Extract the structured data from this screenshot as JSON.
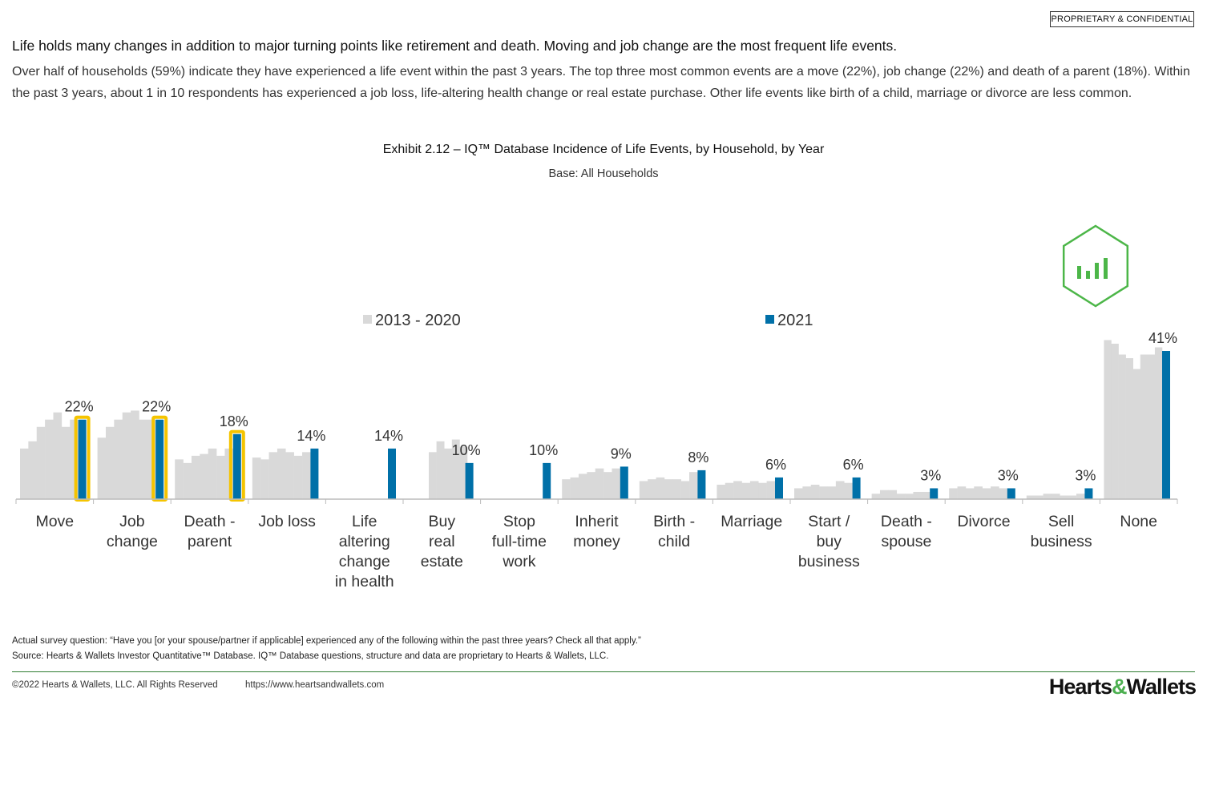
{
  "header": {
    "badge": "PROPRIETARY & CONFIDENTIAL",
    "headline": "Life holds many changes in addition to major turning points like retirement and death. Moving and job change are the most frequent life events.",
    "intro": "Over half of households (59%) indicate they have experienced a life event within the past 3 years. The top three most common events are a move (22%), job change (22%) and death of a parent (18%). Within the past 3 years, about 1 in 10 respondents has experienced a job loss, life-altering health change or real estate purchase. Other life events like birth of a child, marriage or divorce are less common."
  },
  "exhibit": {
    "title": "Exhibit 2.12 – IQ™ Database Incidence of Life Events, by Household, by Year",
    "base": "Base: All Households"
  },
  "chart_data": {
    "type": "bar",
    "title": "Exhibit 2.12 – IQ™ Database Incidence of Life Events, by Household, by Year",
    "subtitle": "Base: All Households",
    "legend": [
      "2013  - 2020",
      "2021"
    ],
    "legend_placement": "top-center",
    "colors": {
      "history": "#d9d9d9",
      "current": "#0070a8",
      "highlight": "#f5c400",
      "icon": "#4cb648"
    },
    "ylim": [
      0,
      45
    ],
    "categories": [
      "Move",
      "Job change",
      "Death - parent",
      "Job loss",
      "Life altering change in health",
      "Buy real estate",
      "Stop full-time work",
      "Inherit money",
      "Birth - child",
      "Marriage",
      "Start / buy business",
      "Death - spouse",
      "Divorce",
      "Sell business",
      "None"
    ],
    "category_lines": [
      [
        "Move"
      ],
      [
        "Job",
        "change"
      ],
      [
        "Death -",
        "parent"
      ],
      [
        "Job loss"
      ],
      [
        "Life",
        "altering",
        "change",
        "in health"
      ],
      [
        "Buy",
        "real",
        "estate"
      ],
      [
        "Stop",
        "full-time",
        "work"
      ],
      [
        "Inherit",
        "money"
      ],
      [
        "Birth -",
        "child"
      ],
      [
        "Marriage"
      ],
      [
        "Start /",
        "buy",
        "business"
      ],
      [
        "Death -",
        "spouse"
      ],
      [
        "Divorce"
      ],
      [
        "Sell",
        "business"
      ],
      [
        "None"
      ]
    ],
    "series": [
      {
        "name": "2013  - 2020",
        "values": [
          [
            14,
            16,
            20,
            22,
            24,
            20,
            22
          ],
          [
            17,
            20,
            22,
            24,
            24.5,
            22,
            22
          ],
          [
            11,
            10,
            12,
            12.5,
            14,
            12,
            14
          ],
          [
            11.5,
            11,
            13,
            14,
            13,
            12,
            13
          ],
          [],
          [],
          [],
          [
            5.5,
            6,
            7,
            7.5,
            8.5,
            7.5,
            8.5
          ],
          [
            5,
            5.5,
            6,
            5.5,
            5.5,
            5,
            7.5
          ],
          [
            4,
            4.5,
            5,
            4.5,
            5,
            4.5,
            5
          ],
          [
            3,
            3.5,
            4,
            3.5,
            3.5,
            5,
            4.5
          ],
          [
            1.5,
            2.5,
            2.5,
            1.5,
            1.5,
            2,
            2
          ],
          [
            3,
            3.5,
            3,
            3.5,
            3,
            3.5,
            3
          ],
          [
            1,
            1,
            1.5,
            1.5,
            1,
            1,
            1.5
          ],
          [
            44,
            43,
            40,
            39,
            36,
            40,
            40,
            42
          ]
        ],
        "value_groups": [
          [],
          [],
          [],
          [],
          [],
          [
            13,
            16,
            14,
            16.5,
            14.5
          ],
          [],
          [],
          [],
          [],
          [],
          [],
          [],
          [],
          []
        ]
      },
      {
        "name": "2021",
        "values": [
          22,
          22,
          18,
          14,
          14,
          10,
          10,
          9,
          8,
          6,
          6,
          3,
          3,
          3,
          41
        ],
        "labels": [
          "22%",
          "22%",
          "18%",
          "14%",
          "14%",
          "10%",
          "10%",
          "9%",
          "8%",
          "6%",
          "6%",
          "3%",
          "3%",
          "3%",
          "41%"
        ],
        "highlighted": [
          true,
          true,
          true,
          false,
          false,
          false,
          false,
          false,
          false,
          false,
          false,
          false,
          false,
          false,
          false
        ]
      }
    ],
    "grid": false
  },
  "footer": {
    "question": "Actual survey question: “Have you [or your spouse/partner if applicable] experienced any of the following within the past three years? Check all that apply.”",
    "source": "Source: Hearts & Wallets Investor Quantitative™ Database. IQ™ Database questions, structure and data are proprietary to Hearts & Wallets, LLC.",
    "copyright": "©2022 Hearts & Wallets, LLC. All Rights Reserved",
    "url": "https://www.heartsandwallets.com",
    "logo_left": "Hearts",
    "logo_amp": "&",
    "logo_right": "Wallets"
  }
}
